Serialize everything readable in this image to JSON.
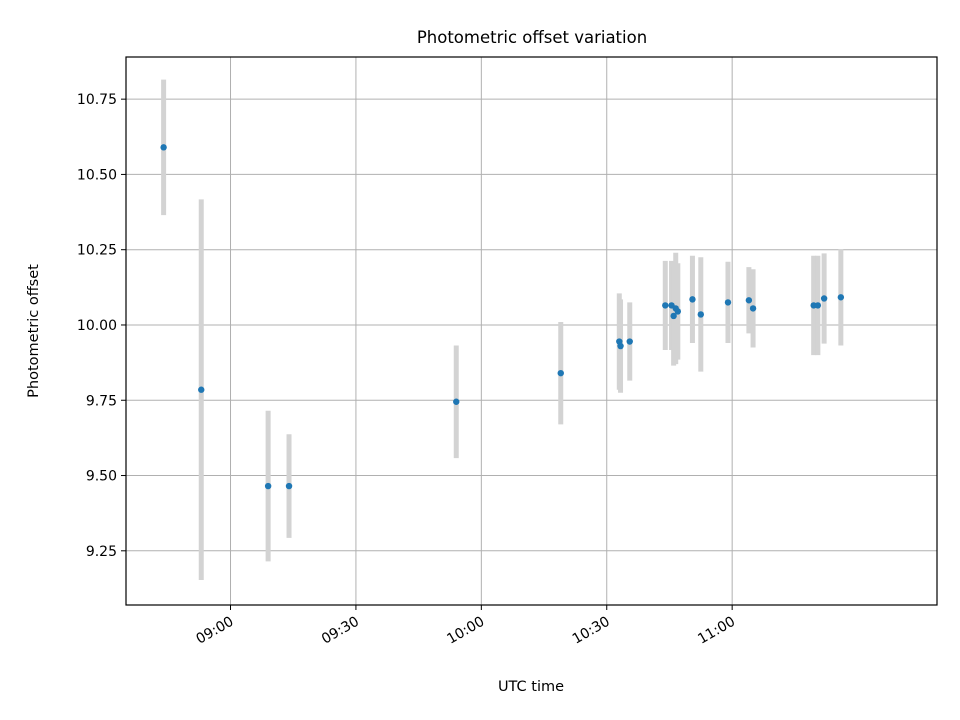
{
  "chart_data": {
    "type": "scatter",
    "title": "Photometric offset variation",
    "xlabel": "UTC time",
    "ylabel": "Photometric offset",
    "x_ticks": [
      "09:00",
      "09:30",
      "10:00",
      "10:30",
      "11:00"
    ],
    "y_ticks": [
      "9.25",
      "9.50",
      "9.75",
      "10.00",
      "10.25",
      "10.50",
      "10.75"
    ],
    "xlim": [
      "08:35",
      "11:49"
    ],
    "ylim": [
      9.07,
      10.89
    ],
    "grid": true,
    "colors": {
      "point": "#1f77b4",
      "errorbar": "#d3d3d3",
      "grid": "#b0b0b0"
    },
    "points": [
      {
        "t": "08:44",
        "y": 10.59,
        "err": 0.225
      },
      {
        "t": "08:53",
        "y": 9.785,
        "err": 0.632
      },
      {
        "t": "09:09",
        "y": 9.465,
        "err": 0.25
      },
      {
        "t": "09:14",
        "y": 9.465,
        "err": 0.172
      },
      {
        "t": "09:54",
        "y": 9.745,
        "err": 0.187
      },
      {
        "t": "10:19",
        "y": 9.84,
        "err": 0.17
      },
      {
        "t": "10:33",
        "y": 9.945,
        "err": 0.16
      },
      {
        "t": "10:33.3",
        "y": 9.93,
        "err": 0.155
      },
      {
        "t": "10:35.5",
        "y": 9.945,
        "err": 0.13
      },
      {
        "t": "10:44",
        "y": 10.065,
        "err": 0.148
      },
      {
        "t": "10:45.5",
        "y": 10.065,
        "err": 0.148
      },
      {
        "t": "10:46",
        "y": 10.03,
        "err": 0.165
      },
      {
        "t": "10:46.5",
        "y": 10.055,
        "err": 0.185
      },
      {
        "t": "10:47",
        "y": 10.045,
        "err": 0.16
      },
      {
        "t": "10:50.5",
        "y": 10.085,
        "err": 0.145
      },
      {
        "t": "10:52.5",
        "y": 10.035,
        "err": 0.19
      },
      {
        "t": "10:59",
        "y": 10.075,
        "err": 0.135
      },
      {
        "t": "11:04",
        "y": 10.082,
        "err": 0.11
      },
      {
        "t": "11:05",
        "y": 10.055,
        "err": 0.13
      },
      {
        "t": "11:19.5",
        "y": 10.065,
        "err": 0.165
      },
      {
        "t": "11:20.5",
        "y": 10.065,
        "err": 0.165
      },
      {
        "t": "11:22",
        "y": 10.088,
        "err": 0.15
      },
      {
        "t": "11:26",
        "y": 10.092,
        "err": 0.16
      }
    ]
  }
}
